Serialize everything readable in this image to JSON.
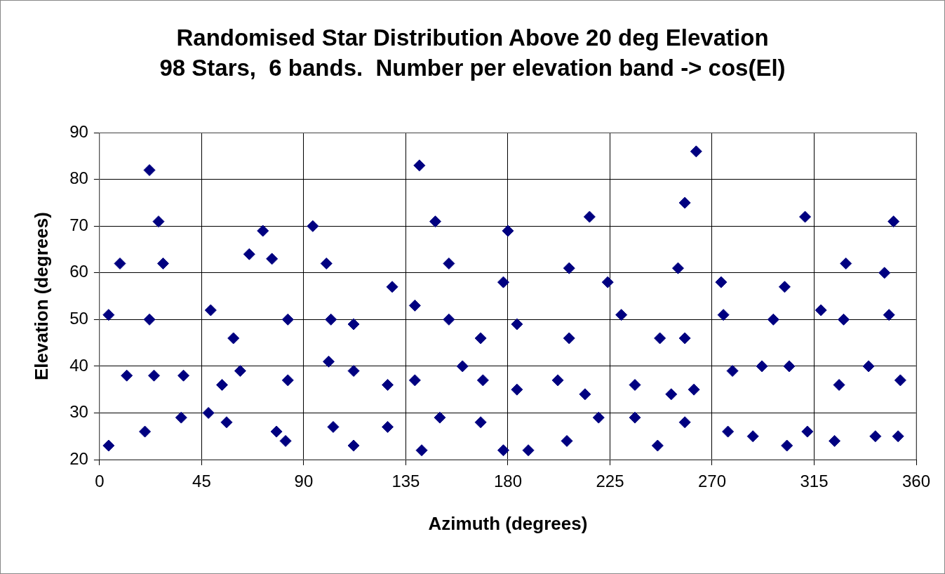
{
  "chart_data": {
    "type": "scatter",
    "title": "Randomised Star Distribution Above 20 deg Elevation",
    "subtitle": "98 Stars,  6 bands.  Number per elevation band -> cos(El)",
    "xlabel": "Azimuth (degrees)",
    "ylabel": "Elevation (degrees)",
    "xlim": [
      0,
      360
    ],
    "xticks": [
      0,
      45,
      90,
      135,
      180,
      225,
      270,
      315,
      360
    ],
    "ylim": [
      20,
      90
    ],
    "yticks": [
      20,
      30,
      40,
      50,
      60,
      70,
      80,
      90
    ],
    "grid": true,
    "legend": false,
    "marker": "diamond",
    "series": [
      {
        "color": "#000080",
        "x": [
          4,
          4,
          9,
          12,
          20,
          22,
          22,
          24,
          26,
          28,
          36,
          37,
          48,
          49,
          54,
          56,
          59,
          62,
          66,
          72,
          76,
          78,
          82,
          83,
          83,
          94,
          100,
          101,
          102,
          103,
          112,
          112,
          112,
          127,
          127,
          129,
          139,
          139,
          141,
          142,
          148,
          150,
          154,
          154,
          160,
          168,
          169,
          168,
          178,
          178,
          180,
          184,
          184,
          189,
          202,
          206,
          207,
          207,
          214,
          216,
          220,
          224,
          230,
          236,
          236,
          246,
          247,
          252,
          255,
          258,
          258,
          258,
          262,
          263,
          274,
          275,
          277,
          279,
          288,
          292,
          297,
          302,
          303,
          304,
          311,
          312,
          318,
          324,
          326,
          328,
          329,
          339,
          342,
          346,
          348,
          350,
          352,
          353
        ],
        "values": [
          51,
          23,
          62,
          38,
          26,
          82,
          50,
          38,
          71,
          62,
          29,
          38,
          30,
          52,
          36,
          28,
          46,
          39,
          64,
          69,
          63,
          26,
          24,
          50,
          37,
          70,
          62,
          41,
          50,
          27,
          49,
          39,
          23,
          36,
          27,
          57,
          53,
          37,
          83,
          22,
          71,
          29,
          62,
          50,
          40,
          46,
          37,
          28,
          58,
          22,
          69,
          49,
          35,
          22,
          37,
          24,
          61,
          46,
          34,
          72,
          29,
          58,
          51,
          36,
          29,
          23,
          46,
          34,
          61,
          46,
          75,
          28,
          35,
          86,
          58,
          51,
          26,
          39,
          25,
          40,
          50,
          57,
          23,
          40,
          72,
          26,
          52,
          24,
          36,
          50,
          62,
          40,
          25,
          60,
          51,
          71,
          25,
          37
        ]
      }
    ]
  }
}
